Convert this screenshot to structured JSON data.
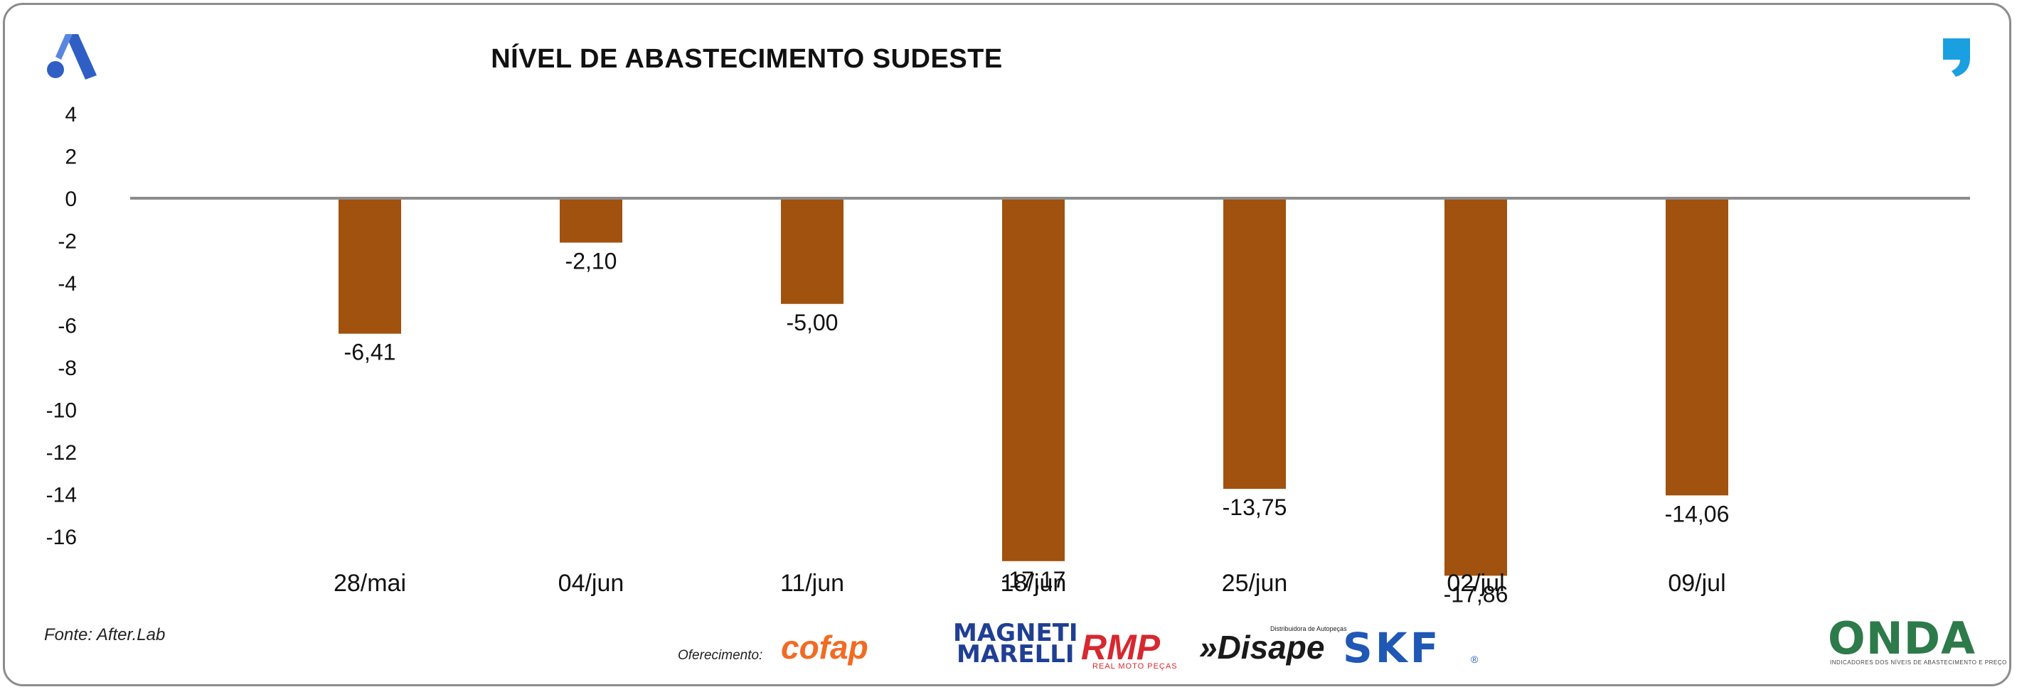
{
  "header": {
    "title": "NÍVEL DE ABASTECIMENTO SUDESTE",
    "left_logo_icon": "after-lab-a-logo-icon",
    "right_logo_icon": "comma-quote-logo-icon"
  },
  "footer": {
    "source": "Fonte: After.Lab",
    "sponsor_label": "Oferecimento:",
    "sponsors": {
      "cofap": "cofap",
      "magneti_line1": "MAGNETI",
      "magneti_line2": "MARELLI",
      "rmp": "RMP",
      "rmp_sub": "REAL MOTO PEÇAS",
      "disape": "»Disape",
      "disape_sub": "Distribuidora de Autopeças",
      "skf": "SKF",
      "skf_reg": "®"
    },
    "onda": "ONDA",
    "onda_sub": "INDICADORES DOS NÍVEIS DE ABASTECIMENTO E PREÇO"
  },
  "colors": {
    "bar": "#a0520e",
    "axis_line": "#8c8c8c",
    "text": "#111111"
  },
  "chart_data": {
    "type": "bar",
    "title": "NÍVEL DE ABASTECIMENTO SUDESTE",
    "xlabel": "",
    "ylabel": "",
    "categories": [
      "28/mai",
      "04/jun",
      "11/jun",
      "18/jun",
      "25/jun",
      "02/jul",
      "09/jul"
    ],
    "values": [
      -6.41,
      -2.1,
      -5.0,
      -17.17,
      -13.75,
      -17.86,
      -14.06
    ],
    "value_labels": [
      "-6,41",
      "-2,10",
      "-5,00",
      "-17,17",
      "-13,75",
      "-17,86",
      "-14,06"
    ],
    "yticks": [
      "4",
      "2",
      "0",
      "-2",
      "-4",
      "-6",
      "-8",
      "-10",
      "-12",
      "-14",
      "-16"
    ],
    "ytick_values": [
      4,
      2,
      0,
      -2,
      -4,
      -6,
      -8,
      -10,
      -12,
      -14,
      -16
    ],
    "ylim": [
      -16,
      4
    ],
    "grid": false,
    "legend": "none"
  }
}
